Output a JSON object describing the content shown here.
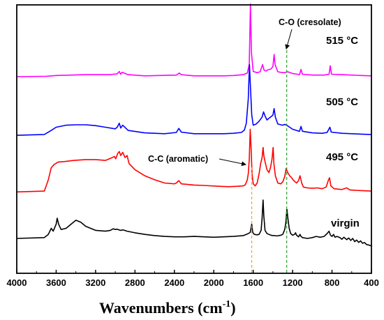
{
  "chart_data": {
    "type": "line",
    "title": "",
    "xlabel": "Wavenumbers (cm",
    "xlabel_sup": "-1",
    "xlabel_close": ")",
    "ylabel": "",
    "x_reversed": true,
    "xlim": [
      4000,
      400
    ],
    "xticks": [
      4000,
      3600,
      3200,
      2800,
      2400,
      2000,
      1600,
      1200,
      800,
      400
    ],
    "grid": false,
    "legend": "none",
    "series": [
      {
        "name": "515 °C",
        "color": "#ff00ff",
        "offset": 4.0,
        "points": [
          [
            4000,
            0
          ],
          [
            3700,
            0.01
          ],
          [
            3600,
            0.03
          ],
          [
            3300,
            0.05
          ],
          [
            3050,
            0.05
          ],
          [
            2980,
            0.07
          ],
          [
            2960,
            0.13
          ],
          [
            2945,
            0.06
          ],
          [
            2930,
            0.11
          ],
          [
            2870,
            0.05
          ],
          [
            2700,
            0.02
          ],
          [
            2380,
            0.04
          ],
          [
            2350,
            0.09
          ],
          [
            2330,
            0.05
          ],
          [
            2200,
            0.02
          ],
          [
            1900,
            0.02
          ],
          [
            1800,
            0.03
          ],
          [
            1700,
            0.05
          ],
          [
            1660,
            0.09
          ],
          [
            1640,
            0.3
          ],
          [
            1628,
            1.8
          ],
          [
            1618,
            0.6
          ],
          [
            1600,
            0.13
          ],
          [
            1560,
            0.1
          ],
          [
            1530,
            0.12
          ],
          [
            1505,
            0.3
          ],
          [
            1490,
            0.16
          ],
          [
            1470,
            0.14
          ],
          [
            1450,
            0.17
          ],
          [
            1420,
            0.19
          ],
          [
            1400,
            0.25
          ],
          [
            1388,
            0.55
          ],
          [
            1378,
            0.3
          ],
          [
            1350,
            0.12
          ],
          [
            1300,
            0.1
          ],
          [
            1280,
            0.1
          ],
          [
            1250,
            0.12
          ],
          [
            1200,
            0.08
          ],
          [
            1150,
            0.06
          ],
          [
            1130,
            0.05
          ],
          [
            1115,
            0.18
          ],
          [
            1100,
            0.06
          ],
          [
            1000,
            0.04
          ],
          [
            880,
            0.04
          ],
          [
            830,
            0.06
          ],
          [
            818,
            0.27
          ],
          [
            805,
            0.06
          ],
          [
            700,
            0.05
          ],
          [
            600,
            0.04
          ],
          [
            500,
            0.03
          ],
          [
            400,
            0.02
          ]
        ]
      },
      {
        "name": "505 °C",
        "color": "#0000ff",
        "offset": 2.55,
        "points": [
          [
            4000,
            0
          ],
          [
            3720,
            0.02
          ],
          [
            3650,
            0.12
          ],
          [
            3600,
            0.2
          ],
          [
            3500,
            0.25
          ],
          [
            3400,
            0.26
          ],
          [
            3300,
            0.26
          ],
          [
            3200,
            0.24
          ],
          [
            3100,
            0.2
          ],
          [
            3000,
            0.16
          ],
          [
            2980,
            0.2
          ],
          [
            2960,
            0.3
          ],
          [
            2945,
            0.18
          ],
          [
            2925,
            0.25
          ],
          [
            2870,
            0.12
          ],
          [
            2700,
            0.06
          ],
          [
            2500,
            0.04
          ],
          [
            2380,
            0.07
          ],
          [
            2355,
            0.17
          ],
          [
            2330,
            0.08
          ],
          [
            2200,
            0.04
          ],
          [
            1900,
            0.04
          ],
          [
            1800,
            0.05
          ],
          [
            1720,
            0.07
          ],
          [
            1690,
            0.13
          ],
          [
            1670,
            0.3
          ],
          [
            1650,
            0.9
          ],
          [
            1638,
            1.75
          ],
          [
            1628,
            1.2
          ],
          [
            1615,
            0.5
          ],
          [
            1600,
            0.25
          ],
          [
            1570,
            0.28
          ],
          [
            1540,
            0.35
          ],
          [
            1510,
            0.45
          ],
          [
            1495,
            0.58
          ],
          [
            1480,
            0.48
          ],
          [
            1460,
            0.38
          ],
          [
            1440,
            0.42
          ],
          [
            1425,
            0.45
          ],
          [
            1400,
            0.5
          ],
          [
            1388,
            0.66
          ],
          [
            1375,
            0.45
          ],
          [
            1350,
            0.28
          ],
          [
            1300,
            0.25
          ],
          [
            1280,
            0.27
          ],
          [
            1260,
            0.25
          ],
          [
            1230,
            0.2
          ],
          [
            1200,
            0.15
          ],
          [
            1160,
            0.12
          ],
          [
            1130,
            0.1
          ],
          [
            1115,
            0.22
          ],
          [
            1100,
            0.1
          ],
          [
            1000,
            0.06
          ],
          [
            900,
            0.05
          ],
          [
            850,
            0.07
          ],
          [
            822,
            0.2
          ],
          [
            808,
            0.08
          ],
          [
            700,
            0.05
          ],
          [
            600,
            0.04
          ],
          [
            500,
            0.03
          ],
          [
            400,
            0.02
          ]
        ]
      },
      {
        "name": "495 °C",
        "color": "#ff0000",
        "offset": 1.15,
        "points": [
          [
            4000,
            0
          ],
          [
            3720,
            0.02
          ],
          [
            3680,
            0.3
          ],
          [
            3650,
            0.6
          ],
          [
            3620,
            0.68
          ],
          [
            3580,
            0.74
          ],
          [
            3520,
            0.75
          ],
          [
            3420,
            0.78
          ],
          [
            3300,
            0.8
          ],
          [
            3200,
            0.8
          ],
          [
            3100,
            0.78
          ],
          [
            3030,
            0.85
          ],
          [
            3010,
            0.88
          ],
          [
            2995,
            0.82
          ],
          [
            2975,
            0.95
          ],
          [
            2960,
            1.0
          ],
          [
            2945,
            0.9
          ],
          [
            2925,
            0.98
          ],
          [
            2900,
            0.85
          ],
          [
            2880,
            0.9
          ],
          [
            2860,
            0.7
          ],
          [
            2800,
            0.55
          ],
          [
            2700,
            0.4
          ],
          [
            2600,
            0.3
          ],
          [
            2500,
            0.22
          ],
          [
            2400,
            0.2
          ],
          [
            2380,
            0.22
          ],
          [
            2355,
            0.28
          ],
          [
            2330,
            0.2
          ],
          [
            2200,
            0.17
          ],
          [
            2100,
            0.16
          ],
          [
            1950,
            0.14
          ],
          [
            1850,
            0.13
          ],
          [
            1760,
            0.14
          ],
          [
            1700,
            0.15
          ],
          [
            1680,
            0.18
          ],
          [
            1660,
            0.3
          ],
          [
            1650,
            0.45
          ],
          [
            1640,
            0.8
          ],
          [
            1630,
            1.55
          ],
          [
            1622,
            1.1
          ],
          [
            1612,
            0.45
          ],
          [
            1600,
            0.2
          ],
          [
            1580,
            0.15
          ],
          [
            1560,
            0.22
          ],
          [
            1540,
            0.45
          ],
          [
            1525,
            0.7
          ],
          [
            1510,
            0.85
          ],
          [
            1500,
            1.1
          ],
          [
            1492,
            0.9
          ],
          [
            1480,
            0.75
          ],
          [
            1460,
            0.55
          ],
          [
            1440,
            0.48
          ],
          [
            1425,
            0.6
          ],
          [
            1410,
            0.8
          ],
          [
            1398,
            1.1
          ],
          [
            1390,
            0.7
          ],
          [
            1375,
            0.4
          ],
          [
            1350,
            0.22
          ],
          [
            1320,
            0.2
          ],
          [
            1300,
            0.25
          ],
          [
            1280,
            0.38
          ],
          [
            1265,
            0.58
          ],
          [
            1250,
            0.48
          ],
          [
            1230,
            0.4
          ],
          [
            1210,
            0.35
          ],
          [
            1195,
            0.3
          ],
          [
            1175,
            0.25
          ],
          [
            1160,
            0.22
          ],
          [
            1140,
            0.28
          ],
          [
            1125,
            0.4
          ],
          [
            1115,
            0.3
          ],
          [
            1108,
            0.22
          ],
          [
            1090,
            0.12
          ],
          [
            1050,
            0.1
          ],
          [
            1000,
            0.09
          ],
          [
            950,
            0.1
          ],
          [
            900,
            0.08
          ],
          [
            860,
            0.12
          ],
          [
            835,
            0.3
          ],
          [
            825,
            0.35
          ],
          [
            812,
            0.15
          ],
          [
            780,
            0.08
          ],
          [
            700,
            0.06
          ],
          [
            650,
            0.1
          ],
          [
            620,
            0.05
          ],
          [
            560,
            0.04
          ],
          [
            480,
            0.03
          ],
          [
            400,
            0.02
          ]
        ]
      },
      {
        "name": "virgin",
        "color": "#000000",
        "offset": 0,
        "points": [
          [
            4000,
            0
          ],
          [
            3720,
            0.02
          ],
          [
            3680,
            0.1
          ],
          [
            3650,
            0.25
          ],
          [
            3630,
            0.18
          ],
          [
            3600,
            0.35
          ],
          [
            3590,
            0.5
          ],
          [
            3575,
            0.35
          ],
          [
            3550,
            0.22
          ],
          [
            3500,
            0.25
          ],
          [
            3450,
            0.35
          ],
          [
            3400,
            0.45
          ],
          [
            3350,
            0.4
          ],
          [
            3300,
            0.3
          ],
          [
            3200,
            0.2
          ],
          [
            3100,
            0.18
          ],
          [
            3050,
            0.2
          ],
          [
            3020,
            0.24
          ],
          [
            3000,
            0.22
          ],
          [
            2980,
            0.23
          ],
          [
            2950,
            0.2
          ],
          [
            2920,
            0.21
          ],
          [
            2880,
            0.18
          ],
          [
            2800,
            0.14
          ],
          [
            2700,
            0.1
          ],
          [
            2600,
            0.07
          ],
          [
            2500,
            0.05
          ],
          [
            2400,
            0.04
          ],
          [
            2300,
            0.04
          ],
          [
            2200,
            0.05
          ],
          [
            2100,
            0.04
          ],
          [
            2000,
            0.03
          ],
          [
            1900,
            0.04
          ],
          [
            1800,
            0.05
          ],
          [
            1700,
            0.07
          ],
          [
            1670,
            0.1
          ],
          [
            1650,
            0.12
          ],
          [
            1630,
            0.15
          ],
          [
            1615,
            0.35
          ],
          [
            1605,
            0.15
          ],
          [
            1590,
            0.1
          ],
          [
            1560,
            0.09
          ],
          [
            1540,
            0.1
          ],
          [
            1520,
            0.2
          ],
          [
            1510,
            0.5
          ],
          [
            1500,
            0.95
          ],
          [
            1492,
            0.55
          ],
          [
            1480,
            0.2
          ],
          [
            1460,
            0.12
          ],
          [
            1440,
            0.1
          ],
          [
            1420,
            0.08
          ],
          [
            1400,
            0.07
          ],
          [
            1380,
            0.07
          ],
          [
            1360,
            0.06
          ],
          [
            1340,
            0.07
          ],
          [
            1320,
            0.08
          ],
          [
            1300,
            0.1
          ],
          [
            1280,
            0.22
          ],
          [
            1268,
            0.4
          ],
          [
            1258,
            0.72
          ],
          [
            1248,
            0.5
          ],
          [
            1235,
            0.25
          ],
          [
            1220,
            0.12
          ],
          [
            1200,
            0.08
          ],
          [
            1180,
            0.1
          ],
          [
            1170,
            0.14
          ],
          [
            1160,
            0.08
          ],
          [
            1140,
            0.04
          ],
          [
            1125,
            0.1
          ],
          [
            1115,
            0.05
          ],
          [
            1100,
            0.02
          ],
          [
            1050,
            0.0
          ],
          [
            1000,
            0.02
          ],
          [
            960,
            0.05
          ],
          [
            920,
            0.03
          ],
          [
            880,
            0.05
          ],
          [
            850,
            0.12
          ],
          [
            830,
            0.18
          ],
          [
            815,
            0.08
          ],
          [
            800,
            0.05
          ],
          [
            785,
            0.1
          ],
          [
            770,
            0.03
          ],
          [
            750,
            0.05
          ],
          [
            720,
            0.02
          ],
          [
            700,
            -0.02
          ],
          [
            680,
            0.03
          ],
          [
            650,
            -0.03
          ],
          [
            630,
            0.01
          ],
          [
            610,
            -0.05
          ],
          [
            590,
            0.0
          ],
          [
            570,
            -0.08
          ],
          [
            550,
            -0.04
          ],
          [
            530,
            -0.1
          ],
          [
            510,
            -0.06
          ],
          [
            490,
            -0.12
          ],
          [
            470,
            -0.1
          ],
          [
            450,
            -0.15
          ],
          [
            430,
            -0.16
          ],
          [
            410,
            -0.18
          ],
          [
            400,
            -0.18
          ]
        ]
      }
    ],
    "annotations": [
      {
        "text": "C-O (cresolate)",
        "x": 1260
      },
      {
        "text": "C-C (aromatic)",
        "x": 1615
      }
    ],
    "series_labels": [
      "515 °C",
      "505 °C",
      "495 °C",
      "virgin"
    ]
  }
}
